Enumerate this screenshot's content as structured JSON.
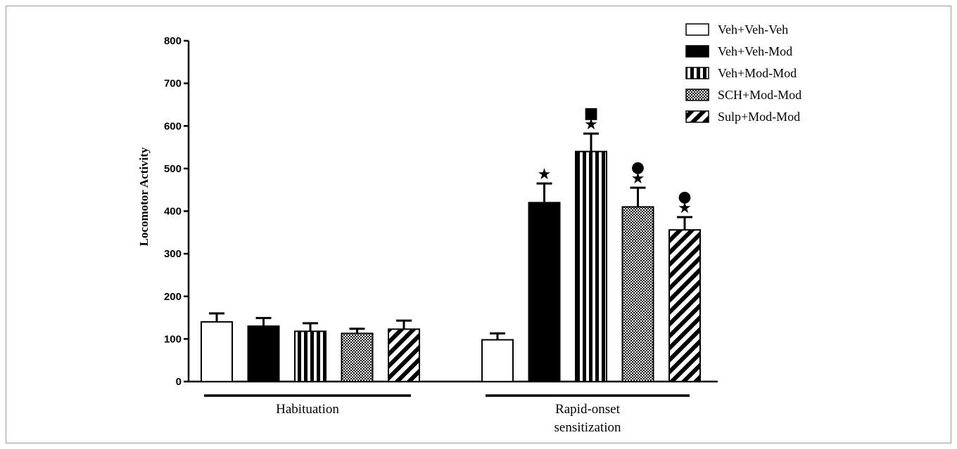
{
  "chart_data": {
    "type": "bar",
    "title": "",
    "xlabel": "",
    "ylabel": "Locomotor Activity",
    "ylim": [
      0,
      800
    ],
    "yticks": [
      "0",
      "100",
      "200",
      "300",
      "400",
      "500",
      "600",
      "700",
      "800"
    ],
    "groups": [
      "Habituation",
      "Rapid-onset sensitization"
    ],
    "legend_position": "top-right",
    "series": [
      {
        "name": "Veh+Veh-Veh",
        "pattern": "white",
        "values": [
          140,
          98
        ],
        "errors": [
          20,
          15
        ],
        "markers": [
          "",
          ""
        ]
      },
      {
        "name": "Veh+Veh-Mod",
        "pattern": "black",
        "values": [
          130,
          420
        ],
        "errors": [
          19,
          45
        ],
        "markers": [
          "",
          "★"
        ]
      },
      {
        "name": "Veh+Mod-Mod",
        "pattern": "vertical-stripes",
        "values": [
          118,
          540
        ],
        "errors": [
          19,
          42
        ],
        "markers": [
          "",
          "■★"
        ]
      },
      {
        "name": "SCH+Mod-Mod",
        "pattern": "checker",
        "values": [
          113,
          410
        ],
        "errors": [
          11,
          45
        ],
        "markers": [
          "",
          "●★"
        ]
      },
      {
        "name": "Sulp+Mod-Mod",
        "pattern": "diagonal",
        "values": [
          123,
          356
        ],
        "errors": [
          20,
          30
        ],
        "markers": [
          "",
          "●★"
        ]
      }
    ]
  }
}
